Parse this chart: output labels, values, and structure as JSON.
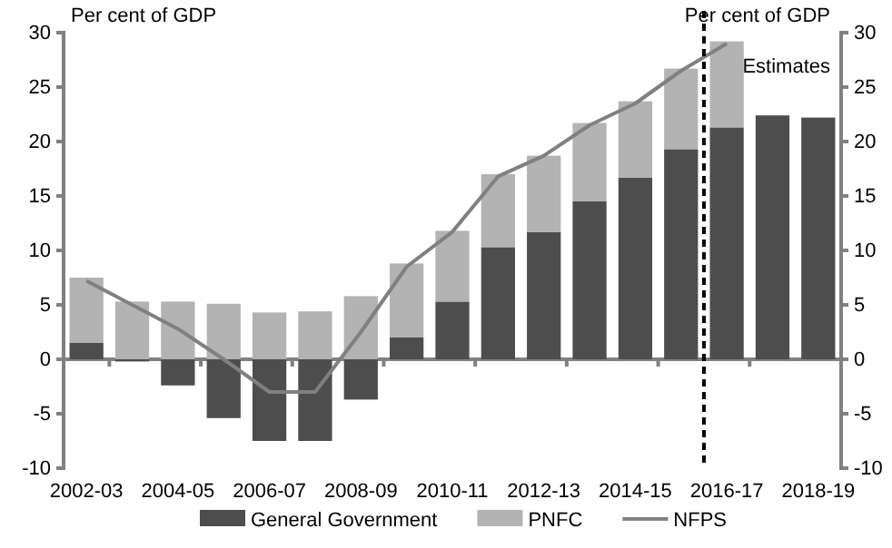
{
  "chart_data": {
    "type": "bar",
    "stacked": true,
    "ylabel": "Per cent of GDP",
    "y2label": "Per cent of GDP",
    "categories": [
      "2002-03",
      null,
      "2004-05",
      null,
      "2006-07",
      null,
      "2008-09",
      null,
      "2010-11",
      null,
      "2012-13",
      null,
      "2014-15",
      null,
      "2016-17",
      null,
      "2018-19"
    ],
    "series": [
      {
        "name": "General Government",
        "color": "#4d4d4d",
        "values": [
          1.5,
          -0.2,
          -2.4,
          -5.4,
          -7.5,
          -7.5,
          -3.7,
          2.0,
          5.3,
          10.3,
          11.7,
          14.5,
          16.7,
          19.3,
          21.3,
          22.4,
          22.2
        ]
      },
      {
        "name": "PNFC",
        "color": "#b3b3b3",
        "values": [
          6.0,
          5.3,
          5.3,
          5.1,
          4.3,
          4.4,
          5.8,
          6.8,
          6.5,
          6.7,
          7.0,
          7.2,
          7.0,
          7.4,
          7.9,
          null,
          null
        ]
      },
      {
        "name": "NFPS",
        "type": "line",
        "color": "#808080",
        "values": [
          7.2,
          5.0,
          2.8,
          0.0,
          -3.0,
          -3.0,
          2.5,
          8.5,
          11.7,
          16.8,
          18.7,
          21.5,
          23.5,
          26.5,
          29.0,
          null,
          null
        ]
      }
    ],
    "ylim": [
      -10,
      30
    ],
    "yticks": [
      -10,
      -5,
      0,
      5,
      10,
      15,
      20,
      25,
      30
    ],
    "y2lim": [
      -10,
      30
    ],
    "y2ticks": [
      -10,
      -5,
      0,
      5,
      10,
      15,
      20,
      25,
      30
    ],
    "ref_lines": [
      {
        "axis": "x",
        "value": "2016-17",
        "label": "Estimates",
        "color": "#000000",
        "line_style": "dashed"
      }
    ],
    "grid": false,
    "legend": "bottom",
    "marker": "none",
    "line_style": "solid"
  }
}
